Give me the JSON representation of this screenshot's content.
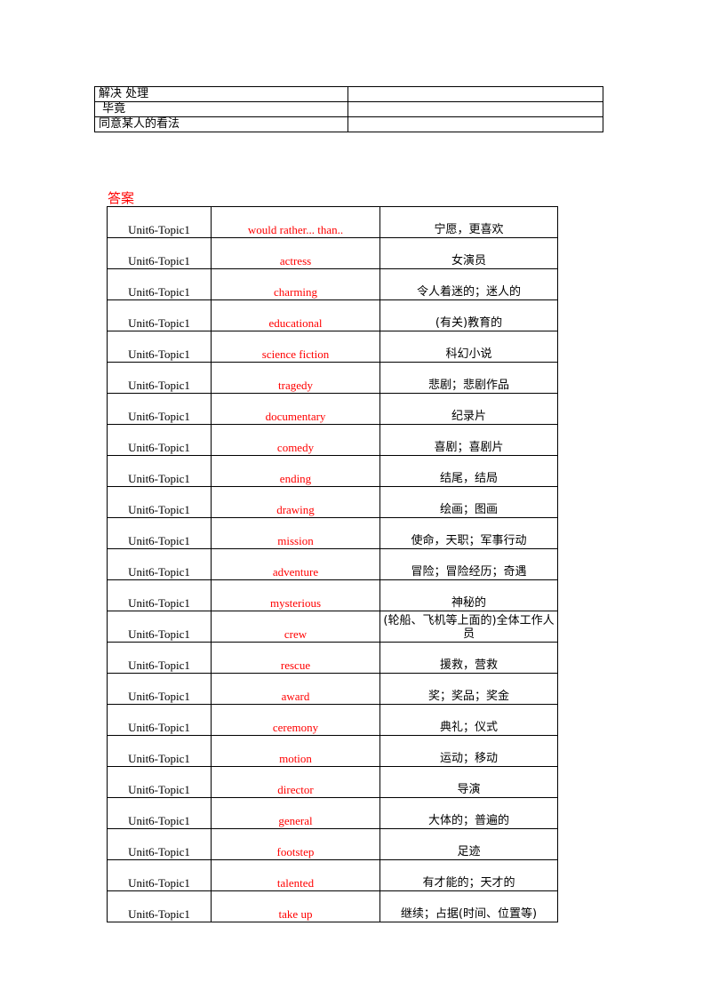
{
  "top_table": {
    "rows": [
      {
        "left": "解决 处理",
        "right": ""
      },
      {
        "left": " 毕竟",
        "right": ""
      },
      {
        "left": "同意某人的看法",
        "right": ""
      }
    ]
  },
  "answer_heading": "答案",
  "answer_table": {
    "rows": [
      {
        "unit": "Unit6-Topic1",
        "word": "would rather... than..",
        "meaning": "宁愿，更喜欢"
      },
      {
        "unit": "Unit6-Topic1",
        "word": "actress",
        "meaning": "女演员"
      },
      {
        "unit": "Unit6-Topic1",
        "word": "charming",
        "meaning": "令人着迷的；迷人的"
      },
      {
        "unit": "Unit6-Topic1",
        "word": "educational",
        "meaning": "(有关)教育的"
      },
      {
        "unit": "Unit6-Topic1",
        "word": "science fiction",
        "meaning": "科幻小说"
      },
      {
        "unit": "Unit6-Topic1",
        "word": "tragedy",
        "meaning": "悲剧；悲剧作品"
      },
      {
        "unit": "Unit6-Topic1",
        "word": "documentary",
        "meaning": "纪录片"
      },
      {
        "unit": "Unit6-Topic1",
        "word": "comedy",
        "meaning": "喜剧；喜剧片"
      },
      {
        "unit": "Unit6-Topic1",
        "word": "ending",
        "meaning": "结尾，结局"
      },
      {
        "unit": "Unit6-Topic1",
        "word": "drawing",
        "meaning": "绘画；图画"
      },
      {
        "unit": "Unit6-Topic1",
        "word": "mission",
        "meaning": "使命，天职；军事行动"
      },
      {
        "unit": "Unit6-Topic1",
        "word": "adventure",
        "meaning": "冒险；冒险经历；奇遇"
      },
      {
        "unit": "Unit6-Topic1",
        "word": "mysterious",
        "meaning": "神秘的"
      },
      {
        "unit": "Unit6-Topic1",
        "word": "crew",
        "meaning": "(轮船、飞机等上面的)全体工作人员"
      },
      {
        "unit": "Unit6-Topic1",
        "word": "rescue",
        "meaning": "援救，营救"
      },
      {
        "unit": "Unit6-Topic1",
        "word": "award",
        "meaning": "奖；奖品；奖金"
      },
      {
        "unit": "Unit6-Topic1",
        "word": "ceremony",
        "meaning": "典礼；仪式"
      },
      {
        "unit": "Unit6-Topic1",
        "word": "motion",
        "meaning": "运动；移动"
      },
      {
        "unit": "Unit6-Topic1",
        "word": "director",
        "meaning": "导演"
      },
      {
        "unit": "Unit6-Topic1",
        "word": "general",
        "meaning": "大体的；普遍的"
      },
      {
        "unit": "Unit6-Topic1",
        "word": "footstep",
        "meaning": "足迹"
      },
      {
        "unit": "Unit6-Topic1",
        "word": "talented",
        "meaning": "有才能的；天才的"
      },
      {
        "unit": "Unit6-Topic1",
        "word": "take up",
        "meaning": "继续；占据(时间、位置等)"
      }
    ]
  }
}
